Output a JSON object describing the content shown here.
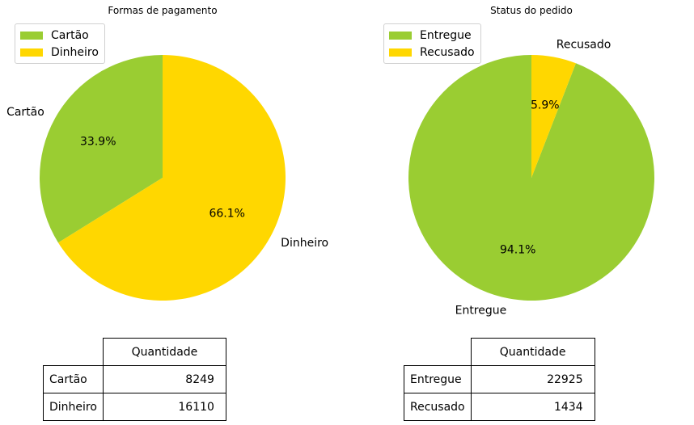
{
  "colors": {
    "green": "#9acd32",
    "gold": "#ffd700"
  },
  "chart_data": [
    {
      "type": "pie",
      "title": "Formas de pagamento",
      "labels": [
        "Cartão",
        "Dinheiro"
      ],
      "values": [
        8249,
        16110
      ],
      "percent_labels": [
        "33.9%",
        "66.1%"
      ],
      "colors": [
        "#9acd32",
        "#ffd700"
      ],
      "legend": {
        "placement": "top-left",
        "entries": [
          "Cartão",
          "Dinheiro"
        ]
      },
      "table": {
        "column_header": "Quantidade",
        "rows": [
          {
            "label": "Cartão",
            "value": "8249"
          },
          {
            "label": "Dinheiro",
            "value": "16110"
          }
        ]
      }
    },
    {
      "type": "pie",
      "title": "Status do pedido",
      "labels": [
        "Entregue",
        "Recusado"
      ],
      "values": [
        22925,
        1434
      ],
      "percent_labels": [
        "94.1%",
        "5.9%"
      ],
      "colors": [
        "#9acd32",
        "#ffd700"
      ],
      "legend": {
        "placement": "top-left",
        "entries": [
          "Entregue",
          "Recusado"
        ]
      },
      "table": {
        "column_header": "Quantidade",
        "rows": [
          {
            "label": "Entregue",
            "value": "22925"
          },
          {
            "label": "Recusado",
            "value": "1434"
          }
        ]
      }
    }
  ]
}
